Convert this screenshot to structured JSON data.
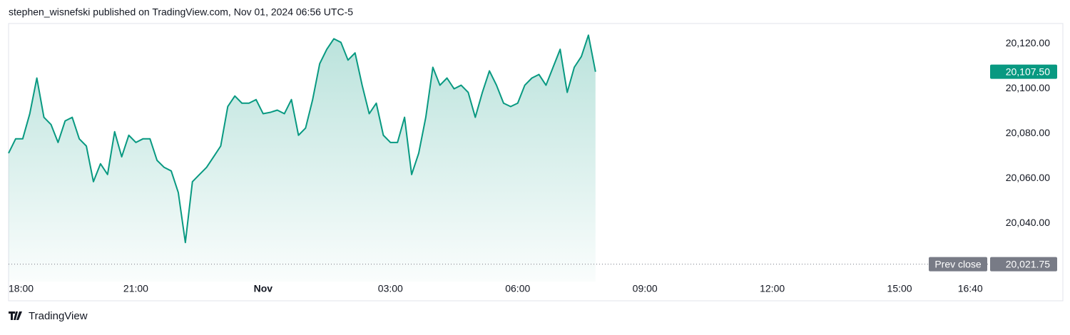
{
  "header": {
    "text": "stephen_wisnefski published on TradingView.com, Nov 01, 2024 06:56 UTC-5"
  },
  "footer": {
    "brand": "TradingView"
  },
  "chart_data": {
    "type": "area",
    "color": "#089981",
    "x": [
      "18:00",
      "18:10",
      "18:20",
      "18:30",
      "18:40",
      "18:50",
      "19:00",
      "19:10",
      "19:20",
      "19:30",
      "19:40",
      "19:50",
      "20:00",
      "20:10",
      "20:20",
      "20:30",
      "20:40",
      "20:50",
      "21:00",
      "21:10",
      "21:20",
      "21:30",
      "21:40",
      "21:50",
      "22:00",
      "22:10",
      "22:20",
      "22:30",
      "22:40",
      "22:50",
      "23:00",
      "23:10",
      "23:20",
      "23:30",
      "23:40",
      "23:50",
      "00:00",
      "00:10",
      "00:20",
      "00:30",
      "00:40",
      "00:50",
      "01:00",
      "01:10",
      "01:20",
      "01:30",
      "01:40",
      "01:50",
      "02:00",
      "02:10",
      "02:20",
      "02:30",
      "02:40",
      "02:50",
      "03:00",
      "03:10",
      "03:20",
      "03:30",
      "03:40",
      "03:50",
      "04:00",
      "04:10",
      "04:20",
      "04:30",
      "04:40",
      "04:50",
      "05:00",
      "05:10",
      "05:20",
      "05:30",
      "05:40",
      "05:50",
      "06:00",
      "06:10",
      "06:20",
      "06:30",
      "06:40",
      "06:50",
      "07:00",
      "07:10",
      "07:20",
      "07:30",
      "07:40",
      "07:50"
    ],
    "values": [
      20071.2,
      20077.6,
      20077.6,
      20088.8,
      20104.7,
      20087.2,
      20084.0,
      20076.0,
      20085.6,
      20087.2,
      20077.6,
      20074.4,
      20058.5,
      20066.5,
      20061.7,
      20080.8,
      20069.6,
      20079.2,
      20076.0,
      20077.6,
      20077.6,
      20068.0,
      20064.9,
      20063.3,
      20053.7,
      20031.4,
      20058.5,
      20061.7,
      20064.9,
      20069.6,
      20074.4,
      20092.0,
      20096.7,
      20093.5,
      20093.5,
      20095.1,
      20088.8,
      20089.4,
      20090.4,
      20088.8,
      20095.1,
      20079.2,
      20082.4,
      20095.1,
      20111.1,
      20117.5,
      20122.2,
      20120.6,
      20112.7,
      20115.9,
      20101.5,
      20088.8,
      20093.5,
      20079.2,
      20076.0,
      20076.0,
      20087.2,
      20061.7,
      20071.2,
      20087.2,
      20109.5,
      20101.5,
      20104.7,
      20099.9,
      20101.5,
      20098.3,
      20087.2,
      20098.3,
      20107.9,
      20101.5,
      20093.5,
      20092.0,
      20093.5,
      20101.5,
      20104.7,
      20106.3,
      20101.5,
      20109.5,
      20117.5,
      20098.3,
      20109.5,
      20114.3,
      20123.8,
      20107.5
    ],
    "xlim": [
      "18:00",
      "17:05"
    ],
    "xticks": [
      "18:00",
      "21:00",
      {
        "value": "00:00",
        "label": "Nov"
      },
      "03:00",
      "06:00",
      "09:00",
      "12:00",
      "15:00",
      "16:40"
    ],
    "ylim": [
      20014,
      20129
    ],
    "yticks": [
      {
        "value": 20040,
        "label": "20,040.00"
      },
      {
        "value": 20060,
        "label": "20,060.00"
      },
      {
        "value": 20080,
        "label": "20,080.00"
      },
      {
        "value": 20100,
        "label": "20,100.00"
      },
      {
        "value": 20120,
        "label": "20,120.00"
      }
    ],
    "last_price": {
      "value": 20107.5,
      "label": "20,107.50",
      "color": "#089981"
    },
    "prev_close": {
      "name": "Prev close",
      "value": 20021.75,
      "label": "20,021.75",
      "color": "#787b86"
    }
  }
}
